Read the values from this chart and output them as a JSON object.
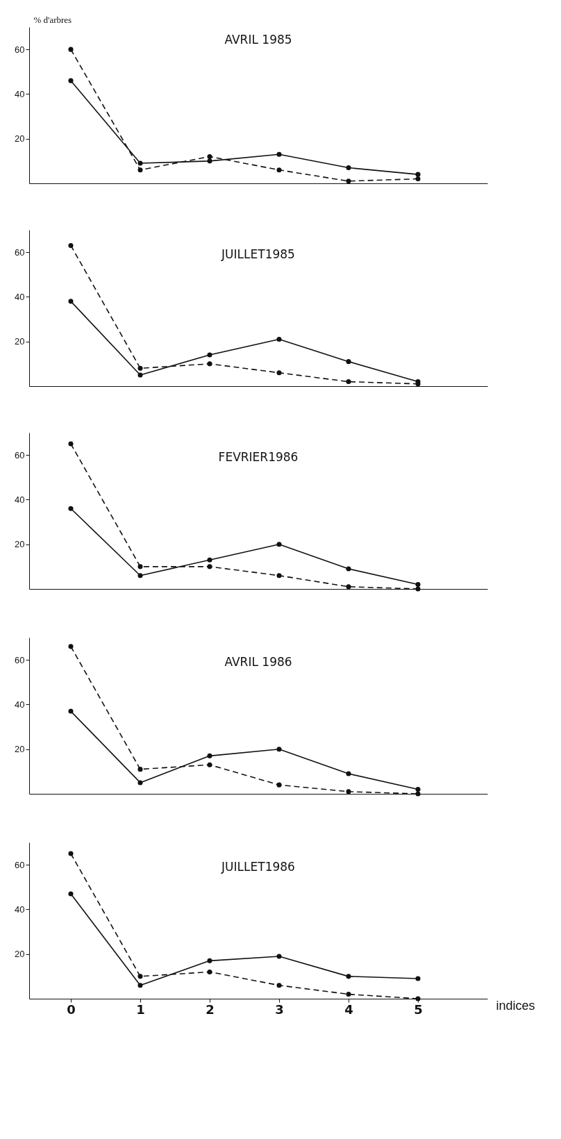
{
  "chart_data": [
    {
      "type": "line",
      "title": "AVRIL 1985",
      "ylabel": "% d'arbres",
      "x": [
        0,
        1,
        2,
        3,
        4,
        5
      ],
      "xlim": [
        -0.6,
        6
      ],
      "xticks": [
        0,
        1,
        2,
        3,
        4,
        5
      ],
      "ylim": [
        0,
        70
      ],
      "yticks": [
        20,
        40,
        60
      ],
      "tick_labels": "y",
      "marker": "circle",
      "series": [
        {
          "color": "#111111",
          "line_style": "solid",
          "values": [
            46,
            9,
            10,
            13,
            7,
            4
          ]
        },
        {
          "color": "#111111",
          "line_style": "dashed",
          "values": [
            60,
            6,
            12,
            6,
            1,
            2
          ]
        }
      ]
    },
    {
      "type": "line",
      "title": "JUILLET1985",
      "x": [
        0,
        1,
        2,
        3,
        4,
        5
      ],
      "xlim": [
        -0.6,
        6
      ],
      "xticks": [
        0,
        1,
        2,
        3,
        4,
        5
      ],
      "ylim": [
        0,
        70
      ],
      "yticks": [
        20,
        40,
        60
      ],
      "tick_labels": "y",
      "marker": "circle",
      "series": [
        {
          "color": "#111111",
          "line_style": "solid",
          "values": [
            38,
            5,
            14,
            21,
            11,
            2
          ]
        },
        {
          "color": "#111111",
          "line_style": "dashed",
          "values": [
            63,
            8,
            10,
            6,
            2,
            1
          ]
        }
      ]
    },
    {
      "type": "line",
      "title": "FEVRIER1986",
      "x": [
        0,
        1,
        2,
        3,
        4,
        5
      ],
      "xlim": [
        -0.6,
        6
      ],
      "xticks": [
        0,
        1,
        2,
        3,
        4,
        5
      ],
      "ylim": [
        0,
        70
      ],
      "yticks": [
        20,
        40,
        60
      ],
      "tick_labels": "y",
      "marker": "circle",
      "series": [
        {
          "color": "#111111",
          "line_style": "solid",
          "values": [
            36,
            6,
            13,
            20,
            9,
            2
          ]
        },
        {
          "color": "#111111",
          "line_style": "dashed",
          "values": [
            65,
            10,
            10,
            6,
            1,
            0
          ]
        }
      ]
    },
    {
      "type": "line",
      "title": "AVRIL 1986",
      "x": [
        0,
        1,
        2,
        3,
        4,
        5
      ],
      "xlim": [
        -0.6,
        6
      ],
      "xticks": [
        0,
        1,
        2,
        3,
        4,
        5
      ],
      "ylim": [
        0,
        70
      ],
      "yticks": [
        20,
        40,
        60
      ],
      "tick_labels": "y",
      "marker": "circle",
      "series": [
        {
          "color": "#111111",
          "line_style": "solid",
          "values": [
            37,
            5,
            17,
            20,
            9,
            2
          ]
        },
        {
          "color": "#111111",
          "line_style": "dashed",
          "values": [
            66,
            11,
            13,
            4,
            1,
            0
          ]
        }
      ]
    },
    {
      "type": "line",
      "title": "JUILLET1986",
      "xlabel": "indices",
      "x": [
        0,
        1,
        2,
        3,
        4,
        5
      ],
      "xlim": [
        -0.6,
        6
      ],
      "xticks": [
        0,
        1,
        2,
        3,
        4,
        5
      ],
      "ylim": [
        0,
        70
      ],
      "yticks": [
        20,
        40,
        60
      ],
      "marker": "circle",
      "series": [
        {
          "color": "#111111",
          "line_style": "solid",
          "values": [
            47,
            6,
            17,
            19,
            10,
            9
          ]
        },
        {
          "color": "#111111",
          "line_style": "dashed",
          "values": [
            65,
            10,
            12,
            6,
            2,
            0
          ]
        }
      ]
    }
  ]
}
